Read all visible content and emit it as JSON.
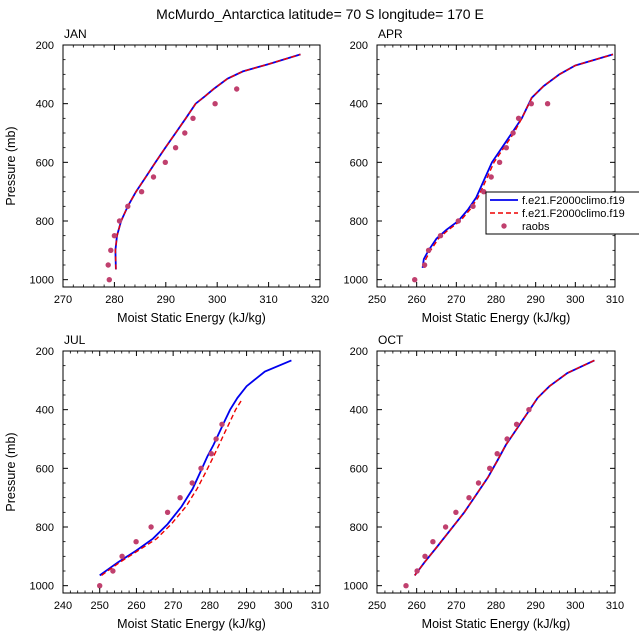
{
  "figure_title": "McMurdo_Antarctica  latitude= 70 S longitude= 170 E",
  "colors": {
    "model1": "#0000ee",
    "model2": "#ee0000",
    "obs": "#c0406e"
  },
  "legend": {
    "model1": "f.e21.F2000climo.f19",
    "model2": "f.e21.F2000climo.f19",
    "obs": "raobs"
  },
  "chart_data": [
    {
      "type": "line",
      "panel": "JAN",
      "title": "JAN",
      "xlabel": "Moist Static Energy (kJ/kg)",
      "ylabel": "Pressure (mb)",
      "xlim": [
        270,
        320
      ],
      "ylim": [
        1025,
        200
      ],
      "xticks": [
        270,
        280,
        290,
        300,
        310,
        320
      ],
      "yticks": [
        200,
        400,
        600,
        800,
        1000
      ],
      "series": [
        {
          "name": "f.e21.F2000climo.f19",
          "style": "solid",
          "points": [
            [
              280.3,
              965
            ],
            [
              280.2,
              900
            ],
            [
              280.5,
              850
            ],
            [
              281.3,
              800
            ],
            [
              282.6,
              750
            ],
            [
              284.2,
              700
            ],
            [
              286.1,
              650
            ],
            [
              288.0,
              600
            ],
            [
              289.9,
              550
            ],
            [
              291.9,
              500
            ],
            [
              293.9,
              450
            ],
            [
              295.8,
              400
            ],
            [
              297.6,
              375
            ],
            [
              299.3,
              350
            ],
            [
              302.0,
              315
            ],
            [
              305.0,
              290
            ],
            [
              310.0,
              265
            ],
            [
              316.2,
              232
            ]
          ]
        },
        {
          "name": "f.e21.F2000climo.f19",
          "style": "dashed",
          "points": [
            [
              280.3,
              965
            ],
            [
              280.2,
              900
            ],
            [
              280.5,
              850
            ],
            [
              281.3,
              800
            ],
            [
              282.6,
              750
            ],
            [
              284.2,
              700
            ],
            [
              286.1,
              650
            ],
            [
              288.0,
              600
            ],
            [
              289.9,
              550
            ],
            [
              291.9,
              500
            ],
            [
              293.9,
              450
            ],
            [
              295.8,
              400
            ],
            [
              297.6,
              375
            ],
            [
              299.3,
              350
            ],
            [
              302.0,
              315
            ],
            [
              305.0,
              290
            ],
            [
              310.0,
              265
            ],
            [
              316.2,
              232
            ]
          ]
        },
        {
          "name": "raobs",
          "style": "markers",
          "points": [
            [
              279.0,
              1000
            ],
            [
              278.8,
              950
            ],
            [
              279.3,
              900
            ],
            [
              280.0,
              850
            ],
            [
              281.0,
              800
            ],
            [
              282.6,
              750
            ],
            [
              285.3,
              700
            ],
            [
              287.6,
              650
            ],
            [
              289.9,
              600
            ],
            [
              291.9,
              550
            ],
            [
              293.7,
              500
            ],
            [
              295.3,
              450
            ],
            [
              299.6,
              400
            ],
            [
              303.8,
              350
            ]
          ]
        }
      ]
    },
    {
      "type": "line",
      "panel": "APR",
      "title": "APR",
      "xlabel": "Moist Static Energy (kJ/kg)",
      "ylabel": "",
      "xlim": [
        250,
        310
      ],
      "ylim": [
        1025,
        200
      ],
      "xticks": [
        250,
        260,
        270,
        280,
        290,
        300,
        310
      ],
      "yticks": [
        200,
        400,
        600,
        800,
        1000
      ],
      "series": [
        {
          "name": "f.e21.F2000climo.f19",
          "style": "solid",
          "points": [
            [
              261.5,
              960
            ],
            [
              261.8,
              930
            ],
            [
              263.0,
              900
            ],
            [
              265.0,
              860
            ],
            [
              267.5,
              830
            ],
            [
              270.5,
              800
            ],
            [
              273.0,
              760
            ],
            [
              275.0,
              720
            ],
            [
              277.0,
              660
            ],
            [
              279.0,
              600
            ],
            [
              281.5,
              550
            ],
            [
              284.0,
              500
            ],
            [
              286.5,
              450
            ],
            [
              289.0,
              380
            ],
            [
              292.0,
              340
            ],
            [
              296.0,
              300
            ],
            [
              300.0,
              270
            ],
            [
              309.5,
              232
            ]
          ]
        },
        {
          "name": "f.e21.F2000climo.f19",
          "style": "dashed",
          "points": [
            [
              262.0,
              960
            ],
            [
              262.3,
              930
            ],
            [
              263.5,
              900
            ],
            [
              265.5,
              860
            ],
            [
              268.0,
              830
            ],
            [
              271.0,
              800
            ],
            [
              273.5,
              760
            ],
            [
              275.5,
              720
            ],
            [
              277.5,
              660
            ],
            [
              279.5,
              600
            ],
            [
              282.0,
              550
            ],
            [
              284.5,
              500
            ],
            [
              286.5,
              450
            ],
            [
              289.0,
              380
            ],
            [
              292.0,
              340
            ],
            [
              296.0,
              300
            ],
            [
              300.0,
              270
            ],
            [
              309.5,
              232
            ]
          ]
        },
        {
          "name": "raobs",
          "style": "markers",
          "points": [
            [
              259.5,
              1000
            ],
            [
              262.0,
              950
            ],
            [
              263.0,
              900
            ],
            [
              266.0,
              850
            ],
            [
              270.5,
              800
            ],
            [
              274.2,
              750
            ],
            [
              276.9,
              700
            ],
            [
              278.8,
              650
            ],
            [
              280.9,
              600
            ],
            [
              282.6,
              550
            ],
            [
              284.3,
              500
            ],
            [
              285.7,
              450
            ],
            [
              288.9,
              400
            ],
            [
              293.0,
              400
            ]
          ]
        }
      ]
    },
    {
      "type": "line",
      "panel": "JUL",
      "title": "JUL",
      "xlabel": "Moist Static Energy (kJ/kg)",
      "ylabel": "Pressure (mb)",
      "xlim": [
        240,
        310
      ],
      "ylim": [
        1025,
        200
      ],
      "xticks": [
        240,
        250,
        260,
        270,
        280,
        290,
        300,
        310
      ],
      "yticks": [
        200,
        400,
        600,
        800,
        1000
      ],
      "series": [
        {
          "name": "f.e21.F2000climo.f19",
          "style": "solid",
          "points": [
            [
              250.0,
              965
            ],
            [
              255.0,
              920
            ],
            [
              260.0,
              880
            ],
            [
              264.5,
              840
            ],
            [
              268.5,
              790
            ],
            [
              272.3,
              730
            ],
            [
              275.3,
              670
            ],
            [
              277.5,
              610
            ],
            [
              279.3,
              560
            ],
            [
              281.0,
              520
            ],
            [
              282.5,
              480
            ],
            [
              284.0,
              440
            ],
            [
              285.5,
              400
            ],
            [
              287.5,
              360
            ],
            [
              290.0,
              320
            ],
            [
              295.0,
              270
            ],
            [
              302.2,
              232
            ]
          ]
        },
        {
          "name": "f.e21.F2000climo.f19",
          "style": "dashed",
          "points": [
            [
              250.5,
              965
            ],
            [
              255.5,
              920
            ],
            [
              260.5,
              880
            ],
            [
              265.5,
              840
            ],
            [
              269.5,
              790
            ],
            [
              273.5,
              730
            ],
            [
              276.5,
              670
            ],
            [
              279.0,
              610
            ],
            [
              281.0,
              560
            ],
            [
              282.5,
              520
            ],
            [
              284.0,
              480
            ],
            [
              285.5,
              440
            ],
            [
              287.0,
              400
            ],
            [
              288.5,
              370
            ]
          ]
        },
        {
          "name": "raobs",
          "style": "markers",
          "points": [
            [
              250.0,
              1000
            ],
            [
              253.6,
              950
            ],
            [
              256.1,
              900
            ],
            [
              259.9,
              850
            ],
            [
              264.0,
              800
            ],
            [
              268.5,
              750
            ],
            [
              271.9,
              700
            ],
            [
              275.2,
              650
            ],
            [
              277.6,
              600
            ],
            [
              280.4,
              550
            ],
            [
              281.7,
              500
            ],
            [
              283.3,
              450
            ]
          ]
        }
      ]
    },
    {
      "type": "line",
      "panel": "OCT",
      "title": "OCT",
      "xlabel": "Moist Static Energy (kJ/kg)",
      "ylabel": "",
      "xlim": [
        250,
        310
      ],
      "ylim": [
        1025,
        200
      ],
      "xticks": [
        250,
        260,
        270,
        280,
        290,
        300,
        310
      ],
      "yticks": [
        200,
        400,
        600,
        800,
        1000
      ],
      "series": [
        {
          "name": "f.e21.F2000climo.f19",
          "style": "solid",
          "points": [
            [
              259.5,
              965
            ],
            [
              262.0,
              920
            ],
            [
              265.0,
              870
            ],
            [
              268.5,
              810
            ],
            [
              272.0,
              750
            ],
            [
              275.0,
              690
            ],
            [
              278.0,
              630
            ],
            [
              280.5,
              570
            ],
            [
              282.5,
              520
            ],
            [
              284.5,
              480
            ],
            [
              286.5,
              440
            ],
            [
              288.5,
              400
            ],
            [
              290.5,
              360
            ],
            [
              293.5,
              320
            ],
            [
              298.0,
              275
            ],
            [
              304.8,
              232
            ]
          ]
        },
        {
          "name": "f.e21.F2000climo.f19",
          "style": "dashed",
          "points": [
            [
              259.5,
              965
            ],
            [
              262.0,
              920
            ],
            [
              265.0,
              870
            ],
            [
              268.5,
              810
            ],
            [
              272.0,
              750
            ],
            [
              275.0,
              690
            ],
            [
              278.0,
              630
            ],
            [
              280.5,
              570
            ],
            [
              282.5,
              520
            ],
            [
              284.5,
              480
            ],
            [
              286.5,
              440
            ],
            [
              288.5,
              400
            ],
            [
              290.5,
              360
            ],
            [
              293.5,
              320
            ],
            [
              298.0,
              275
            ],
            [
              304.8,
              232
            ]
          ]
        },
        {
          "name": "raobs",
          "style": "markers",
          "points": [
            [
              257.3,
              1000
            ],
            [
              260.1,
              950
            ],
            [
              262.1,
              900
            ],
            [
              264.1,
              850
            ],
            [
              267.3,
              800
            ],
            [
              269.9,
              750
            ],
            [
              273.2,
              700
            ],
            [
              275.6,
              650
            ],
            [
              278.4,
              600
            ],
            [
              280.3,
              550
            ],
            [
              282.8,
              500
            ],
            [
              285.2,
              450
            ],
            [
              288.3,
              400
            ]
          ]
        }
      ]
    }
  ]
}
